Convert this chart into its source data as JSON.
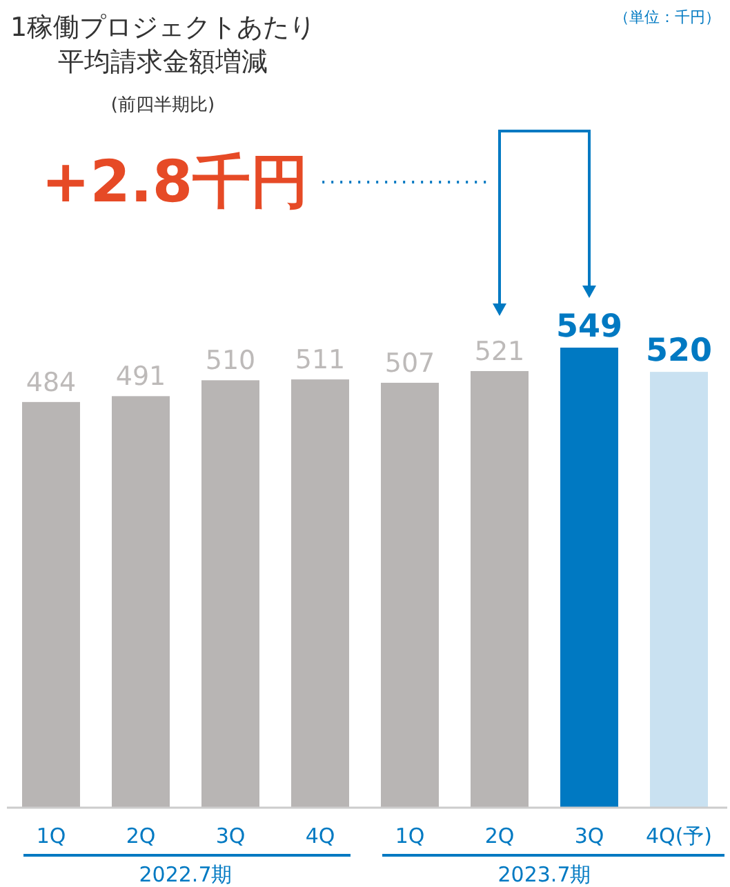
{
  "chart_data": {
    "type": "bar",
    "title": "1稼働プロジェクトあたり平均請求金額増減",
    "subtitle": "(前四半期比)",
    "categories": [
      "1Q",
      "2Q",
      "3Q",
      "4Q",
      "1Q",
      "2Q",
      "3Q",
      "4Q(予)"
    ],
    "values": [
      484,
      491,
      510,
      511,
      507,
      521,
      549,
      520
    ],
    "colors": [
      "#b8b5b4",
      "#b8b5b4",
      "#b8b5b4",
      "#b8b5b4",
      "#b8b5b4",
      "#b8b5b4",
      "#0079c2",
      "#c9e1f1"
    ],
    "data_labels": true,
    "annotations": [
      "（単位：千円）",
      "+2.8千円",
      "2022.7期",
      "2023.7期"
    ]
  }
}
